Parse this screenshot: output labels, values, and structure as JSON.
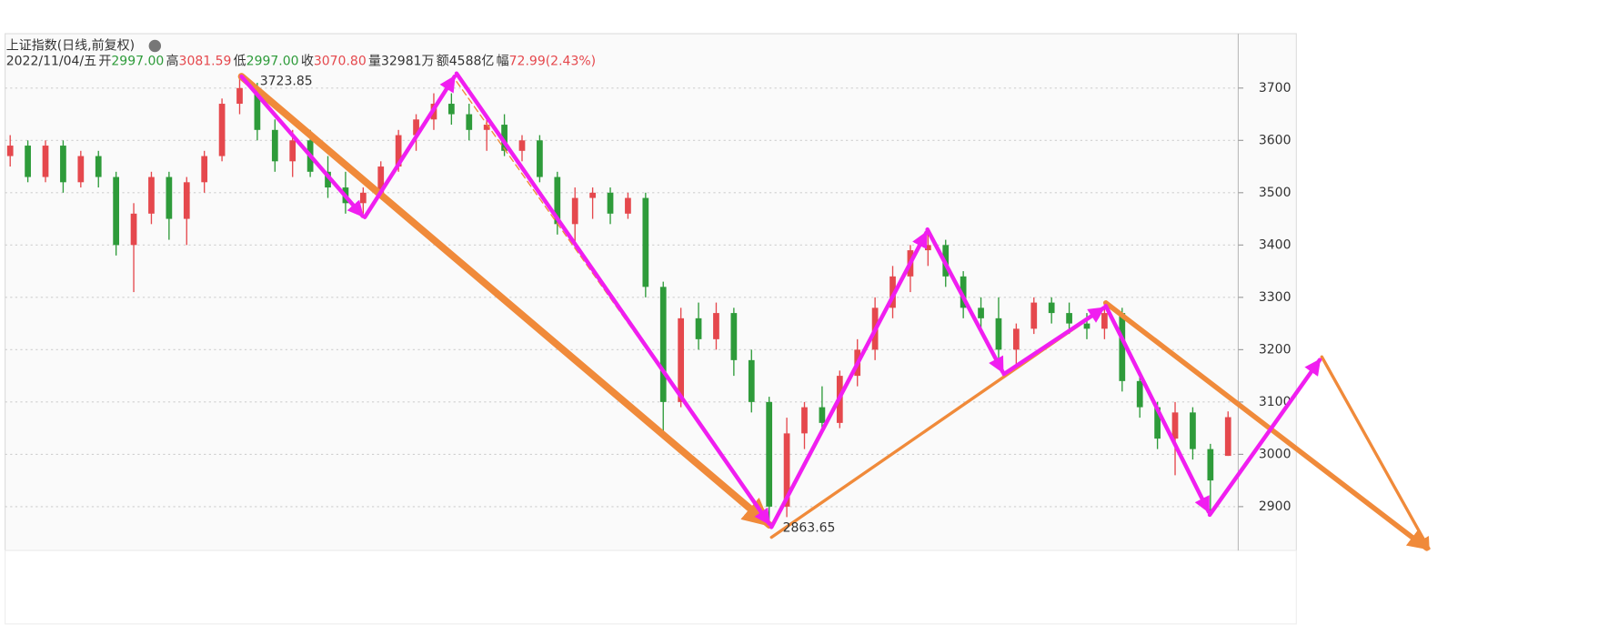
{
  "chart_data": {
    "type": "candlestick",
    "title": "上证指数(日线,前复权)",
    "date": "2022/11/04/五",
    "quote": [
      {
        "label": "开",
        "value": "2997.00",
        "color": "#2e9b3a"
      },
      {
        "label": "高",
        "value": "3081.59",
        "color": "#e5484d"
      },
      {
        "label": "低",
        "value": "2997.00",
        "color": "#2e9b3a"
      },
      {
        "label": "收",
        "value": "3070.80",
        "color": "#e5484d"
      },
      {
        "label": "量",
        "value": "32981万",
        "color": "#333333"
      },
      {
        "label": "额",
        "value": "4588亿",
        "color": "#333333"
      },
      {
        "label": "幅",
        "value": "72.99(2.43%)",
        "color": "#e5484d"
      }
    ],
    "high_label": "3723.85",
    "low_label": "2863.65",
    "ylim": [
      2820,
      3800
    ],
    "yticks": [
      2900,
      3000,
      3100,
      3200,
      3300,
      3400,
      3500,
      3600,
      3700
    ],
    "grid": true,
    "up_color": "#e5484d",
    "down_color": "#2e9b3a",
    "candles": [
      [
        3570,
        3610,
        3550,
        3590
      ],
      [
        3590,
        3600,
        3520,
        3530
      ],
      [
        3530,
        3600,
        3520,
        3590
      ],
      [
        3590,
        3600,
        3500,
        3520
      ],
      [
        3520,
        3580,
        3510,
        3570
      ],
      [
        3570,
        3580,
        3510,
        3530
      ],
      [
        3530,
        3540,
        3380,
        3400
      ],
      [
        3400,
        3480,
        3310,
        3460
      ],
      [
        3460,
        3540,
        3440,
        3530
      ],
      [
        3530,
        3540,
        3410,
        3450
      ],
      [
        3450,
        3530,
        3400,
        3520
      ],
      [
        3520,
        3580,
        3500,
        3570
      ],
      [
        3570,
        3680,
        3560,
        3670
      ],
      [
        3670,
        3724,
        3650,
        3700
      ],
      [
        3700,
        3710,
        3600,
        3620
      ],
      [
        3620,
        3640,
        3540,
        3560
      ],
      [
        3560,
        3620,
        3530,
        3600
      ],
      [
        3600,
        3620,
        3530,
        3540
      ],
      [
        3540,
        3570,
        3490,
        3510
      ],
      [
        3510,
        3540,
        3460,
        3480
      ],
      [
        3480,
        3510,
        3460,
        3500
      ],
      [
        3500,
        3560,
        3490,
        3550
      ],
      [
        3550,
        3620,
        3540,
        3610
      ],
      [
        3610,
        3650,
        3580,
        3640
      ],
      [
        3640,
        3690,
        3620,
        3670
      ],
      [
        3670,
        3690,
        3630,
        3650
      ],
      [
        3650,
        3670,
        3600,
        3620
      ],
      [
        3620,
        3650,
        3580,
        3630
      ],
      [
        3630,
        3650,
        3570,
        3580
      ],
      [
        3580,
        3610,
        3560,
        3600
      ],
      [
        3600,
        3610,
        3520,
        3530
      ],
      [
        3530,
        3540,
        3420,
        3440
      ],
      [
        3440,
        3510,
        3400,
        3490
      ],
      [
        3490,
        3510,
        3450,
        3500
      ],
      [
        3500,
        3510,
        3440,
        3460
      ],
      [
        3460,
        3500,
        3450,
        3490
      ],
      [
        3490,
        3500,
        3300,
        3320
      ],
      [
        3320,
        3330,
        3040,
        3100
      ],
      [
        3100,
        3280,
        3090,
        3260
      ],
      [
        3260,
        3290,
        3200,
        3220
      ],
      [
        3220,
        3290,
        3200,
        3270
      ],
      [
        3270,
        3280,
        3150,
        3180
      ],
      [
        3180,
        3200,
        3080,
        3100
      ],
      [
        3100,
        3110,
        2864,
        2900
      ],
      [
        2900,
        3070,
        2880,
        3040
      ],
      [
        3040,
        3100,
        3010,
        3090
      ],
      [
        3090,
        3130,
        3050,
        3060
      ],
      [
        3060,
        3160,
        3050,
        3150
      ],
      [
        3150,
        3220,
        3130,
        3200
      ],
      [
        3200,
        3300,
        3180,
        3280
      ],
      [
        3280,
        3360,
        3260,
        3340
      ],
      [
        3340,
        3400,
        3310,
        3390
      ],
      [
        3390,
        3424,
        3360,
        3400
      ],
      [
        3400,
        3410,
        3320,
        3340
      ],
      [
        3340,
        3350,
        3260,
        3280
      ],
      [
        3280,
        3300,
        3230,
        3260
      ],
      [
        3260,
        3300,
        3180,
        3200
      ],
      [
        3200,
        3250,
        3170,
        3240
      ],
      [
        3240,
        3300,
        3230,
        3290
      ],
      [
        3290,
        3300,
        3250,
        3270
      ],
      [
        3270,
        3290,
        3230,
        3250
      ],
      [
        3250,
        3270,
        3220,
        3240
      ],
      [
        3240,
        3290,
        3220,
        3270
      ],
      [
        3270,
        3280,
        3120,
        3140
      ],
      [
        3140,
        3150,
        3070,
        3090
      ],
      [
        3090,
        3100,
        3010,
        3030
      ],
      [
        3030,
        3100,
        2960,
        3080
      ],
      [
        3080,
        3090,
        2990,
        3010
      ],
      [
        3010,
        3020,
        2885,
        2950
      ],
      [
        2997,
        3082,
        2997,
        3071
      ]
    ]
  }
}
